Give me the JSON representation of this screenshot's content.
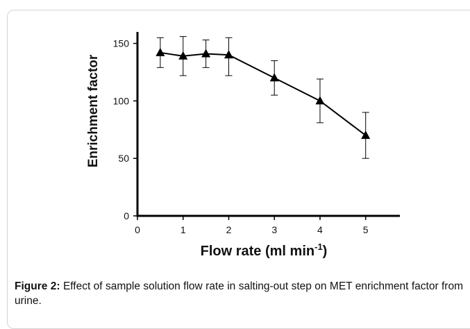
{
  "chart_data": {
    "type": "line",
    "xlabel_main": "Flow rate (ml min",
    "xlabel_sup": "-1",
    "xlabel_close": ")",
    "ylabel": "Enrichment factor",
    "xlim": [
      0,
      5.75
    ],
    "ylim": [
      0,
      160
    ],
    "x_ticks": [
      "0",
      "1",
      "2",
      "3",
      "4",
      "5"
    ],
    "y_ticks": [
      "0",
      "50",
      "100",
      "150"
    ],
    "grid": false,
    "marker": "triangle",
    "series": [
      {
        "x": [
          0.5,
          1,
          1.5,
          2,
          3,
          4,
          5
        ],
        "y": [
          142,
          139,
          141,
          140,
          120,
          100,
          70
        ],
        "err_low": [
          13,
          17,
          12,
          18,
          15,
          19,
          20
        ],
        "err_high": [
          13,
          17,
          12,
          15,
          15,
          19,
          20
        ]
      }
    ]
  },
  "caption": {
    "label": "Figure 2:",
    "text": " Effect of sample solution flow rate in salting-out step on MET enrichment factor from urine."
  }
}
